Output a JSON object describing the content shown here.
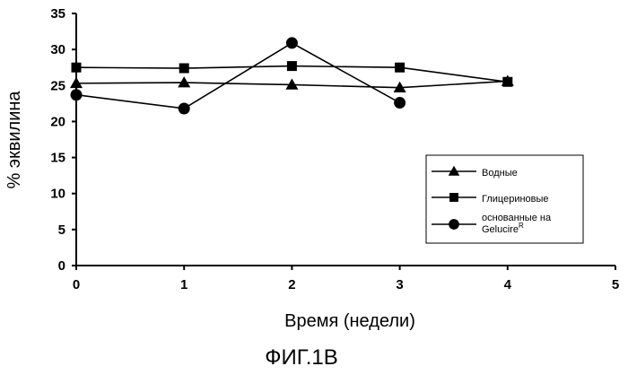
{
  "chart_data": {
    "type": "line",
    "title": "",
    "xlabel": "Время (недели)",
    "ylabel": "% эквилина",
    "xlim": [
      0,
      5
    ],
    "ylim": [
      0,
      35
    ],
    "xticks": [
      "0",
      "1",
      "2",
      "3",
      "4",
      "5"
    ],
    "yticks": [
      "0",
      "5",
      "10",
      "15",
      "20",
      "25",
      "30",
      "35"
    ],
    "grid": false,
    "legend_position": "right",
    "series": [
      {
        "name": "Водные",
        "marker": "triangle",
        "x": [
          0,
          1,
          2,
          3,
          4
        ],
        "y": [
          25.3,
          25.4,
          25.1,
          24.7,
          25.6
        ]
      },
      {
        "name": "Глицериновые",
        "marker": "square",
        "x": [
          0,
          1,
          2,
          3,
          4
        ],
        "y": [
          27.5,
          27.4,
          27.7,
          27.5,
          25.5
        ]
      },
      {
        "name": "основанные на Gelucire",
        "name_superscript": "R",
        "marker": "circle",
        "x": [
          0,
          1,
          2,
          3
        ],
        "y": [
          23.7,
          21.8,
          30.9,
          22.6
        ]
      }
    ]
  },
  "caption": "ФИГ.1В"
}
